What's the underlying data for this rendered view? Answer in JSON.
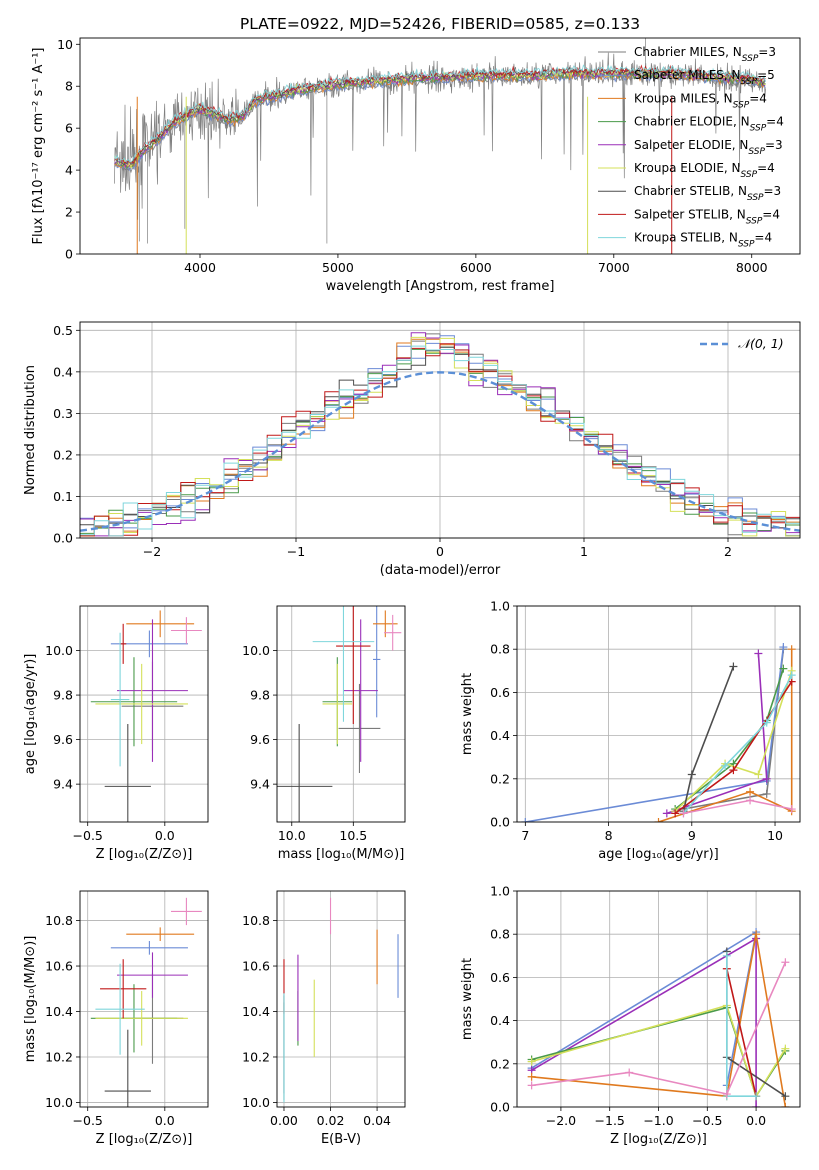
{
  "figure": {
    "title": "PLATE=0922, MJD=52426, FIBERID=0585, z=0.133"
  },
  "colors": {
    "Chabrier MILES": "#7b7b7b",
    "Salpeter MILES": "#6b8bd6",
    "Kroupa MILES": "#e07a1f",
    "Chabrier ELODIE": "#4a9a4a",
    "Salpeter ELODIE": "#9a2fb8",
    "Kroupa ELODIE": "#d4e05a",
    "Chabrier STELIB": "#4d4d4d",
    "Salpeter STELIB": "#c01818",
    "Kroupa STELIB": "#7fd6dc",
    "Extra": "#e888c0",
    "gaussian": "#5b8fd6"
  },
  "chart_data": [
    {
      "type": "line",
      "panel": "spectrum",
      "xlabel": "wavelength [Angstrom, rest frame]",
      "ylabel": "Flux [fλ10⁻¹⁷ erg cm⁻² s⁻¹ A⁻¹]",
      "xlim": [
        3130,
        8350
      ],
      "ylim": [
        0,
        10.3
      ],
      "xticks": [
        4000,
        5000,
        6000,
        7000,
        8000
      ],
      "yticks": [
        0,
        2,
        4,
        6,
        8,
        10
      ],
      "legend_position": "right",
      "legend": [
        "Chabrier MILES, N_SSP=3",
        "Salpeter MILES, N_SSP=5",
        "Kroupa MILES, N_SSP=4",
        "Chabrier ELODIE, N_SSP=4",
        "Salpeter ELODIE, N_SSP=3",
        "Kroupa ELODIE, N_SSP=4",
        "Chabrier STELIB, N_SSP=3",
        "Salpeter STELIB, N_SSP=4",
        "Kroupa STELIB, N_SSP=4"
      ],
      "data_continuum": {
        "x": [
          3380,
          3500,
          3600,
          3700,
          3800,
          3900,
          4000,
          4100,
          4200,
          4300,
          4400,
          4500,
          4600,
          4700,
          4800,
          4900,
          5000,
          5200,
          5400,
          5600,
          5800,
          6000,
          6200,
          6400,
          6600,
          6800,
          7000,
          7200,
          7400,
          7600,
          7800,
          8000,
          8100
        ],
        "y": [
          4.4,
          4.2,
          5.0,
          5.5,
          6.2,
          6.6,
          6.9,
          6.7,
          6.4,
          6.5,
          7.3,
          7.5,
          7.6,
          7.8,
          7.9,
          8.0,
          8.1,
          8.2,
          8.3,
          8.4,
          8.4,
          8.5,
          8.5,
          8.5,
          8.6,
          8.6,
          8.6,
          8.6,
          8.6,
          8.5,
          8.4,
          8.3,
          8.1
        ]
      }
    },
    {
      "type": "histogram",
      "panel": "residuals",
      "xlabel": "(data-model)/error",
      "ylabel": "Normed distribution",
      "xlim": [
        -2.5,
        2.5
      ],
      "ylim": [
        0,
        0.52
      ],
      "xticks": [
        -2,
        -1,
        0,
        1,
        2
      ],
      "yticks": [
        0.0,
        0.1,
        0.2,
        0.3,
        0.4,
        0.5
      ],
      "bin_width": 0.1,
      "legend": "𝒩(0, 1)",
      "legend_position": "upper right"
    },
    {
      "type": "scatter",
      "panel": "age-vs-Z",
      "xlabel": "Z [log10(Z/Z⊙)]",
      "ylabel": "age  [log10(age/yr)]",
      "xlim": [
        -0.55,
        0.28
      ],
      "ylim": [
        9.23,
        10.2
      ],
      "xticks": [
        -0.5,
        0.0
      ],
      "yticks": [
        9.4,
        9.6,
        9.8,
        10.0
      ],
      "points": [
        {
          "model": "Chabrier MILES",
          "x": -0.08,
          "y": 9.75,
          "xerr": 0.2,
          "yerr": 0.2
        },
        {
          "model": "Salpeter MILES",
          "x": -0.1,
          "y": 10.03,
          "xerr": 0.25,
          "yerr": 0.06
        },
        {
          "model": "Kroupa MILES",
          "x": -0.03,
          "y": 10.12,
          "xerr": 0.22,
          "yerr": 0.06
        },
        {
          "model": "Chabrier ELODIE",
          "x": -0.2,
          "y": 9.77,
          "xerr": 0.28,
          "yerr": 0.2
        },
        {
          "model": "Salpeter ELODIE",
          "x": -0.08,
          "y": 9.82,
          "xerr": 0.23,
          "yerr": 0.32
        },
        {
          "model": "Kroupa ELODIE",
          "x": -0.15,
          "y": 9.76,
          "xerr": 0.3,
          "yerr": 0.18
        },
        {
          "model": "Chabrier STELIB",
          "x": -0.24,
          "y": 9.39,
          "xerr": 0.15,
          "yerr": 0.28
        },
        {
          "model": "Salpeter STELIB",
          "x": -0.27,
          "y": 10.03,
          "xerr": 0.02,
          "yerr": 0.09
        },
        {
          "model": "Kroupa STELIB",
          "x": -0.29,
          "y": 9.78,
          "xerr": 0.06,
          "yerr": 0.3
        },
        {
          "model": "Extra",
          "x": 0.14,
          "y": 10.09,
          "xerr": 0.1,
          "yerr": 0.06
        }
      ]
    },
    {
      "type": "scatter",
      "panel": "age-vs-mass",
      "xlabel": "mass [log10(M/M⊙)]",
      "ylabel": "",
      "xlim": [
        9.88,
        10.92
      ],
      "ylim": [
        9.23,
        10.2
      ],
      "xticks": [
        10.0,
        10.5
      ],
      "yticks": [
        9.4,
        9.6,
        9.8,
        10.0
      ],
      "points": [
        {
          "model": "Chabrier MILES",
          "x": 10.55,
          "y": 9.65,
          "xerr": 0.17,
          "yerr": 0.2
        },
        {
          "model": "Salpeter MILES",
          "x": 10.69,
          "y": 9.96,
          "xerr": 0.03,
          "yerr": 0.26
        },
        {
          "model": "Kroupa MILES",
          "x": 10.76,
          "y": 10.12,
          "xerr": 0.1,
          "yerr": 0.06
        },
        {
          "model": "Chabrier ELODIE",
          "x": 10.37,
          "y": 9.77,
          "xerr": 0.12,
          "yerr": 0.2
        },
        {
          "model": "Salpeter ELODIE",
          "x": 10.56,
          "y": 9.82,
          "xerr": 0.14,
          "yerr": 0.32
        },
        {
          "model": "Kroupa ELODIE",
          "x": 10.37,
          "y": 9.76,
          "xerr": 0.12,
          "yerr": 0.18
        },
        {
          "model": "Chabrier STELIB",
          "x": 10.06,
          "y": 9.39,
          "xerr": 0.27,
          "yerr": 0.28
        },
        {
          "model": "Salpeter STELIB",
          "x": 10.5,
          "y": 10.02,
          "xerr": 0.14,
          "yerr": 0.35
        },
        {
          "model": "Kroupa STELIB",
          "x": 10.42,
          "y": 10.04,
          "xerr": 0.25,
          "yerr": 0.36
        },
        {
          "model": "Extra",
          "x": 10.82,
          "y": 10.08,
          "xerr": 0.07,
          "yerr": 0.08
        }
      ]
    },
    {
      "type": "line",
      "panel": "mass-weight-vs-age",
      "xlabel": "age  [log10(age/yr)]",
      "ylabel": "mass weight",
      "xlim": [
        6.9,
        10.3
      ],
      "ylim": [
        0,
        1
      ],
      "xticks": [
        7,
        8,
        9,
        10
      ],
      "yticks": [
        0.0,
        0.2,
        0.4,
        0.6,
        0.8,
        1.0
      ],
      "series": [
        {
          "model": "Chabrier MILES",
          "x": [
            8.9,
            9.9,
            10.1
          ],
          "y": [
            0.06,
            0.13,
            0.8
          ]
        },
        {
          "model": "Salpeter MILES",
          "x": [
            7.0,
            9.9,
            10.1
          ],
          "y": [
            0.0,
            0.19,
            0.81
          ]
        },
        {
          "model": "Kroupa MILES",
          "x": [
            8.6,
            9.7,
            10.2,
            10.2
          ],
          "y": [
            0.0,
            0.14,
            0.05,
            0.8
          ]
        },
        {
          "model": "Chabrier ELODIE",
          "x": [
            8.8,
            9.5,
            9.9,
            10.1
          ],
          "y": [
            0.06,
            0.27,
            0.47,
            0.71
          ]
        },
        {
          "model": "Salpeter ELODIE",
          "x": [
            8.7,
            9.9,
            9.8
          ],
          "y": [
            0.04,
            0.2,
            0.78
          ]
        },
        {
          "model": "Kroupa ELODIE",
          "x": [
            8.8,
            9.4,
            9.8,
            10.2
          ],
          "y": [
            0.05,
            0.27,
            0.22,
            0.7
          ]
        },
        {
          "model": "Chabrier STELIB",
          "x": [
            8.9,
            9.0,
            9.5
          ],
          "y": [
            0.05,
            0.22,
            0.72
          ]
        },
        {
          "model": "Salpeter STELIB",
          "x": [
            8.8,
            9.5,
            10.2
          ],
          "y": [
            0.04,
            0.24,
            0.65
          ]
        },
        {
          "model": "Kroupa STELIB",
          "x": [
            8.9,
            9.4,
            9.9,
            10.2
          ],
          "y": [
            0.04,
            0.26,
            0.46,
            0.68
          ]
        },
        {
          "model": "Extra",
          "x": [
            8.9,
            9.7,
            10.2
          ],
          "y": [
            0.04,
            0.1,
            0.06
          ]
        }
      ]
    },
    {
      "type": "scatter",
      "panel": "mass-vs-Z",
      "xlabel": "Z [log10(Z/Z⊙)]",
      "ylabel": "mass [log10(M/M⊙)]",
      "xlim": [
        -0.55,
        0.28
      ],
      "ylim": [
        9.98,
        10.93
      ],
      "xticks": [
        -0.5,
        0.0
      ],
      "yticks": [
        10.0,
        10.2,
        10.4,
        10.6,
        10.8
      ],
      "points": [
        {
          "model": "Chabrier MILES",
          "x": -0.08,
          "y": 10.37,
          "xerr": 0.2,
          "yerr": 0.2
        },
        {
          "model": "Salpeter MILES",
          "x": -0.1,
          "y": 10.68,
          "xerr": 0.25,
          "yerr": 0.03
        },
        {
          "model": "Kroupa MILES",
          "x": -0.03,
          "y": 10.74,
          "xerr": 0.22,
          "yerr": 0.03
        },
        {
          "model": "Chabrier ELODIE",
          "x": -0.2,
          "y": 10.37,
          "xerr": 0.28,
          "yerr": 0.15
        },
        {
          "model": "Salpeter ELODIE",
          "x": -0.08,
          "y": 10.56,
          "xerr": 0.23,
          "yerr": 0.1
        },
        {
          "model": "Kroupa ELODIE",
          "x": -0.15,
          "y": 10.37,
          "xerr": 0.3,
          "yerr": 0.12
        },
        {
          "model": "Chabrier STELIB",
          "x": -0.24,
          "y": 10.05,
          "xerr": 0.15,
          "yerr": 0.27
        },
        {
          "model": "Salpeter STELIB",
          "x": -0.27,
          "y": 10.5,
          "xerr": 0.15,
          "yerr": 0.13
        },
        {
          "model": "Kroupa STELIB",
          "x": -0.29,
          "y": 10.41,
          "xerr": 0.16,
          "yerr": 0.2
        },
        {
          "model": "Extra",
          "x": 0.14,
          "y": 10.84,
          "xerr": 0.1,
          "yerr": 0.06
        }
      ]
    },
    {
      "type": "scatter",
      "panel": "mass-vs-EBV",
      "xlabel": "E(B-V)",
      "ylabel": "",
      "xlim": [
        -0.003,
        0.052
      ],
      "ylim": [
        9.98,
        10.93
      ],
      "xticks": [
        0.0,
        0.02,
        0.04
      ],
      "yticks": [
        10.0,
        10.2,
        10.4,
        10.6,
        10.8
      ],
      "points": [
        {
          "model": "Chabrier MILES",
          "x": 0.0,
          "y": 10.24,
          "yerr": 0.2
        },
        {
          "model": "Salpeter MILES",
          "x": 0.049,
          "y": 10.6,
          "yerr": 0.14
        },
        {
          "model": "Kroupa MILES",
          "x": 0.04,
          "y": 10.64,
          "yerr": 0.12
        },
        {
          "model": "Chabrier ELODIE",
          "x": 0.006,
          "y": 10.37,
          "yerr": 0.12
        },
        {
          "model": "Salpeter ELODIE",
          "x": 0.006,
          "y": 10.46,
          "yerr": 0.19
        },
        {
          "model": "Kroupa ELODIE",
          "x": 0.013,
          "y": 10.37,
          "yerr": 0.17
        },
        {
          "model": "Chabrier STELIB",
          "x": 0.0,
          "y": 10.24,
          "yerr": 0.23
        },
        {
          "model": "Salpeter STELIB",
          "x": 0.0,
          "y": 10.51,
          "yerr": 0.12
        },
        {
          "model": "Kroupa STELIB",
          "x": 0.0,
          "y": 10.24,
          "yerr": 0.24
        },
        {
          "model": "Extra",
          "x": 0.02,
          "y": 10.82,
          "yerr": 0.08
        }
      ]
    },
    {
      "type": "line",
      "panel": "mass-weight-vs-Z",
      "xlabel": "Z [log10(Z/Z⊙)]",
      "ylabel": "mass weight",
      "xlim": [
        -2.45,
        0.45
      ],
      "ylim": [
        0,
        1
      ],
      "xticks": [
        -2.0,
        -1.5,
        -1.0,
        -0.5,
        0.0
      ],
      "yticks": [
        0.0,
        0.2,
        0.4,
        0.6,
        0.8,
        1.0
      ],
      "series": [
        {
          "model": "Salpeter MILES",
          "x": [
            -2.3,
            0.0,
            -0.3
          ],
          "y": [
            0.18,
            0.81,
            0.1
          ]
        },
        {
          "model": "Salpeter ELODIE",
          "x": [
            -2.3,
            0.0,
            0.0
          ],
          "y": [
            0.17,
            0.78,
            0.0
          ]
        },
        {
          "model": "Chabrier ELODIE",
          "x": [
            -2.3,
            -0.3,
            0.0,
            0.3
          ],
          "y": [
            0.22,
            0.46,
            0.05,
            0.26
          ]
        },
        {
          "model": "Kroupa ELODIE",
          "x": [
            -2.3,
            -0.3,
            0.0,
            0.3
          ],
          "y": [
            0.21,
            0.47,
            0.05,
            0.27
          ]
        },
        {
          "model": "Kroupa MILES",
          "x": [
            -2.3,
            -0.3,
            0.0,
            0.3
          ],
          "y": [
            0.14,
            0.05,
            0.8,
            0.0
          ]
        },
        {
          "model": "Chabrier STELIB",
          "x": [
            -0.3,
            -0.3,
            0.3
          ],
          "y": [
            0.72,
            0.23,
            0.05
          ]
        },
        {
          "model": "Salpeter STELIB",
          "x": [
            -0.3,
            0.0
          ],
          "y": [
            0.64,
            0.05
          ]
        },
        {
          "model": "Kroupa STELIB",
          "x": [
            -0.3,
            -0.3,
            0.0
          ],
          "y": [
            0.7,
            0.05,
            0.05
          ]
        },
        {
          "model": "Extra",
          "x": [
            -2.3,
            -1.3,
            -0.3,
            0.3
          ],
          "y": [
            0.1,
            0.16,
            0.06,
            0.67
          ]
        }
      ]
    }
  ]
}
